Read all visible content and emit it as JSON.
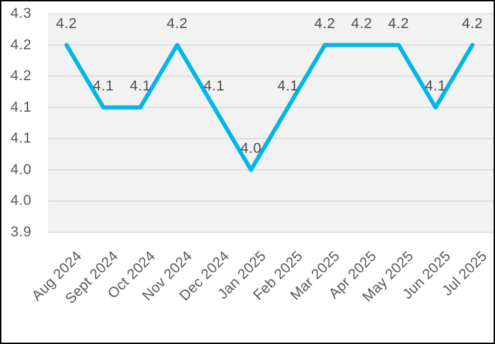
{
  "window": {
    "background": "#FFFFFF",
    "border_color": "#000000"
  },
  "chart_data": {
    "type": "line",
    "title": "",
    "xlabel": "",
    "ylabel": "",
    "categories": [
      "Aug 2024",
      "Sept 2024",
      "Oct 2024",
      "Nov 2024",
      "Dec 2024",
      "Jan 2025",
      "Feb 2025",
      "Mar 2025",
      "Apr 2025",
      "May 2025",
      "Jun 2025",
      "Jul 2025"
    ],
    "series": [
      {
        "name": "",
        "values": [
          4.2,
          4.1,
          4.1,
          4.2,
          4.1,
          4.0,
          4.1,
          4.2,
          4.2,
          4.2,
          4.1,
          4.2
        ],
        "data_labels": [
          "4.2",
          "4.1",
          "4.1",
          "4.2",
          "4.1",
          "4.0",
          "4.1",
          "4.2",
          "4.2",
          "4.2",
          "4.1",
          "4.2"
        ]
      }
    ],
    "ylim": [
      3.9,
      4.25
    ],
    "ytick_step": 0.05,
    "ytick_labels_top_to_bottom": [
      "4.3",
      "4.2",
      "4.2",
      "4.1",
      "4.1",
      "4.0",
      "4.0",
      "3.9"
    ],
    "grid": true,
    "legend": "none",
    "colors": {
      "line": "#00B7E6",
      "plot_background": "#F2F2F2",
      "gridline": "#D9D9D9",
      "text": "#595959"
    }
  }
}
